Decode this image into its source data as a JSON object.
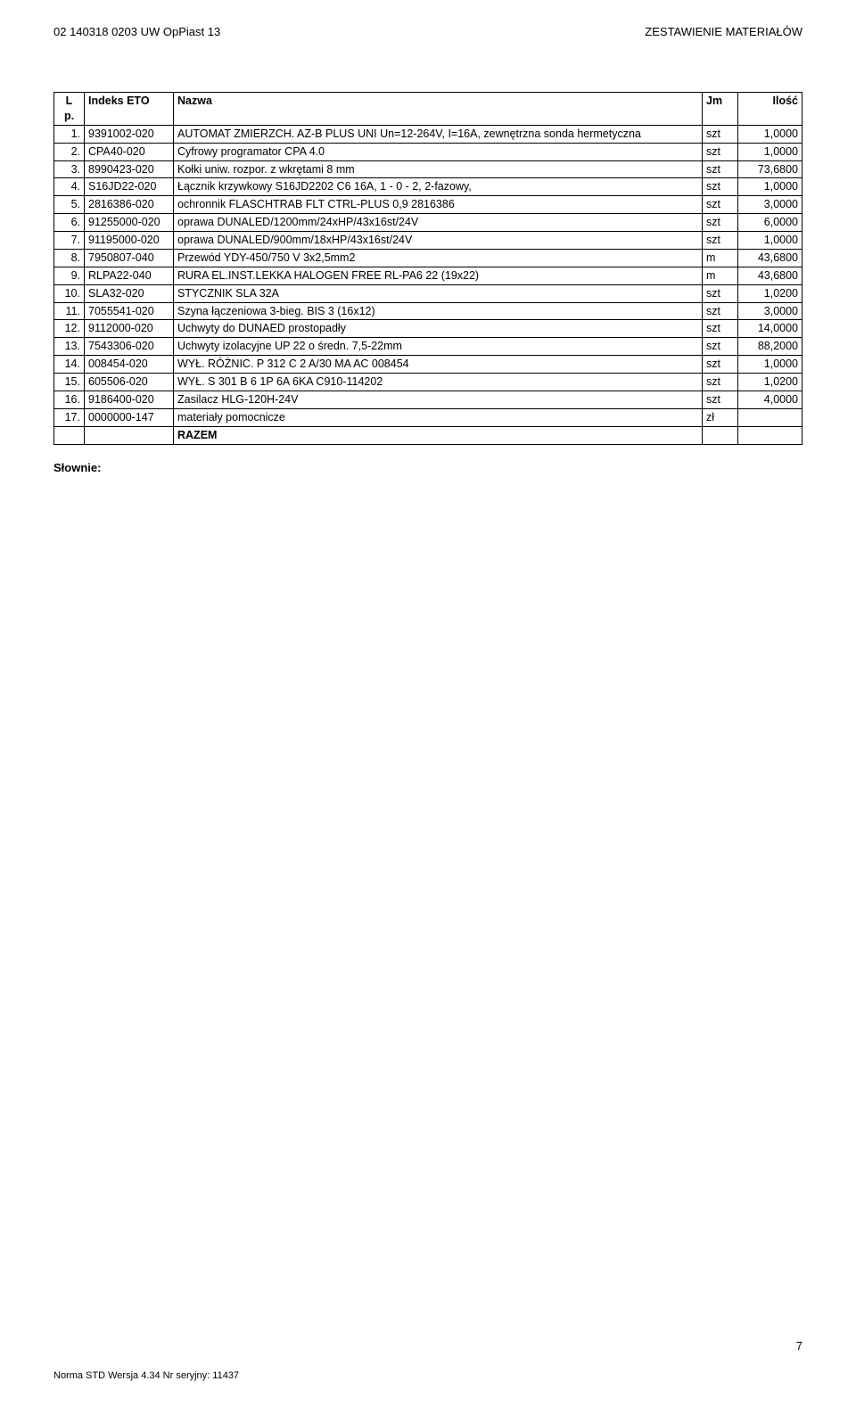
{
  "header": {
    "doc_left": "02 140318 0203 UW OpPiast 13",
    "doc_right": "ZESTAWIENIE MATERIAŁÓW"
  },
  "table": {
    "headers": {
      "lp": "L\np.",
      "index": "Indeks ETO",
      "name": "Nazwa",
      "jm": "Jm",
      "qty": "Ilość"
    },
    "rows": [
      {
        "lp": "1.",
        "index": "9391002-020",
        "name": "AUTOMAT ZMIERZCH. AZ-B PLUS UNI Un=12-264V, I=16A, zewnętrzna sonda hermetyczna",
        "jm": "szt",
        "qty": "1,0000"
      },
      {
        "lp": "2.",
        "index": "CPA40-020",
        "name": "Cyfrowy programator CPA 4.0",
        "jm": "szt",
        "qty": "1,0000"
      },
      {
        "lp": "3.",
        "index": "8990423-020",
        "name": "Kołki uniw. rozpor. z wkrętami 8 mm",
        "jm": "szt",
        "qty": "73,6800"
      },
      {
        "lp": "4.",
        "index": "S16JD22-020",
        "name": "Łącznik krzywkowy S16JD2202 C6 16A, 1 - 0 - 2, 2-fazowy,",
        "jm": "szt",
        "qty": "1,0000"
      },
      {
        "lp": "5.",
        "index": "2816386-020",
        "name": "ochronnik FLASCHTRAB  FLT  CTRL-PLUS 0,9    2816386",
        "jm": "szt",
        "qty": "3,0000"
      },
      {
        "lp": "6.",
        "index": "91255000-020",
        "name": "oprawa DUNALED/1200mm/24xHP/43x16st/24V",
        "jm": "szt",
        "qty": "6,0000"
      },
      {
        "lp": "7.",
        "index": "91195000-020",
        "name": "oprawa DUNALED/900mm/18xHP/43x16st/24V",
        "jm": "szt",
        "qty": "1,0000"
      },
      {
        "lp": "8.",
        "index": "7950807-040",
        "name": "Przewód YDY-450/750 V 3x2,5mm2",
        "jm": "m",
        "qty": "43,6800"
      },
      {
        "lp": "9.",
        "index": "RLPA22-040",
        "name": "RURA EL.INST.LEKKA HALOGEN FREE RL-PA6 22 (19x22)",
        "jm": "m",
        "qty": "43,6800"
      },
      {
        "lp": "10.",
        "index": "SLA32-020",
        "name": "STYCZNIK SLA 32A",
        "jm": "szt",
        "qty": "1,0200"
      },
      {
        "lp": "11.",
        "index": "7055541-020",
        "name": "Szyna łączeniowa 3-bieg. BIS 3 (16x12)",
        "jm": "szt",
        "qty": "3,0000"
      },
      {
        "lp": "12.",
        "index": "9112000-020",
        "name": "Uchwyty do DUNAED prostopadły",
        "jm": "szt",
        "qty": "14,0000"
      },
      {
        "lp": "13.",
        "index": "7543306-020",
        "name": "Uchwyty izolacyjne UP 22 o średn. 7,5-22mm",
        "jm": "szt",
        "qty": "88,2000"
      },
      {
        "lp": "14.",
        "index": "008454-020",
        "name": "WYŁ. RÓŻNIC. P 312 C 2 A/30 MA AC   008454",
        "jm": "szt",
        "qty": "1,0000"
      },
      {
        "lp": "15.",
        "index": "605506-020",
        "name": "WYŁ. S 301 B 6 1P 6A 6KA    C910-114202",
        "jm": "szt",
        "qty": "1,0200"
      },
      {
        "lp": "16.",
        "index": "9186400-020",
        "name": "Zasilacz HLG-120H-24V",
        "jm": "szt",
        "qty": "4,0000"
      },
      {
        "lp": "17.",
        "index": "0000000-147",
        "name": "materiały pomocnicze",
        "jm": "zł",
        "qty": ""
      }
    ],
    "razem_label": "RAZEM"
  },
  "slownie_label": "Słownie:",
  "footer_text": "Norma STD Wersja 4.34 Nr seryjny: 11437",
  "page_number": "7"
}
